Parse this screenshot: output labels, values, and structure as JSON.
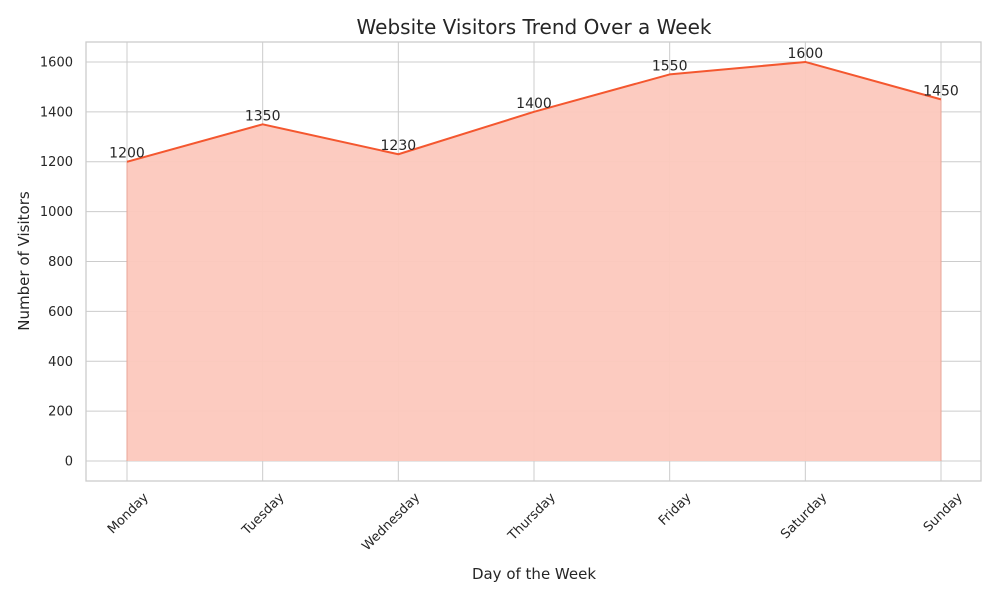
{
  "chart_data": {
    "type": "area",
    "title": "Website Visitors Trend Over a Week",
    "xlabel": "Day of the Week",
    "ylabel": "Number of Visitors",
    "categories": [
      "Monday",
      "Tuesday",
      "Wednesday",
      "Thursday",
      "Friday",
      "Saturday",
      "Sunday"
    ],
    "values": [
      1200,
      1350,
      1230,
      1400,
      1550,
      1600,
      1450
    ],
    "ylim": [
      -80,
      1680
    ],
    "yticks": [
      0,
      200,
      400,
      600,
      800,
      1000,
      1200,
      1400,
      1600
    ],
    "grid": true,
    "legend": "none",
    "colors": {
      "line": "#f4572f",
      "fill": "#fcc8bd",
      "grid": "#cccccc"
    }
  }
}
